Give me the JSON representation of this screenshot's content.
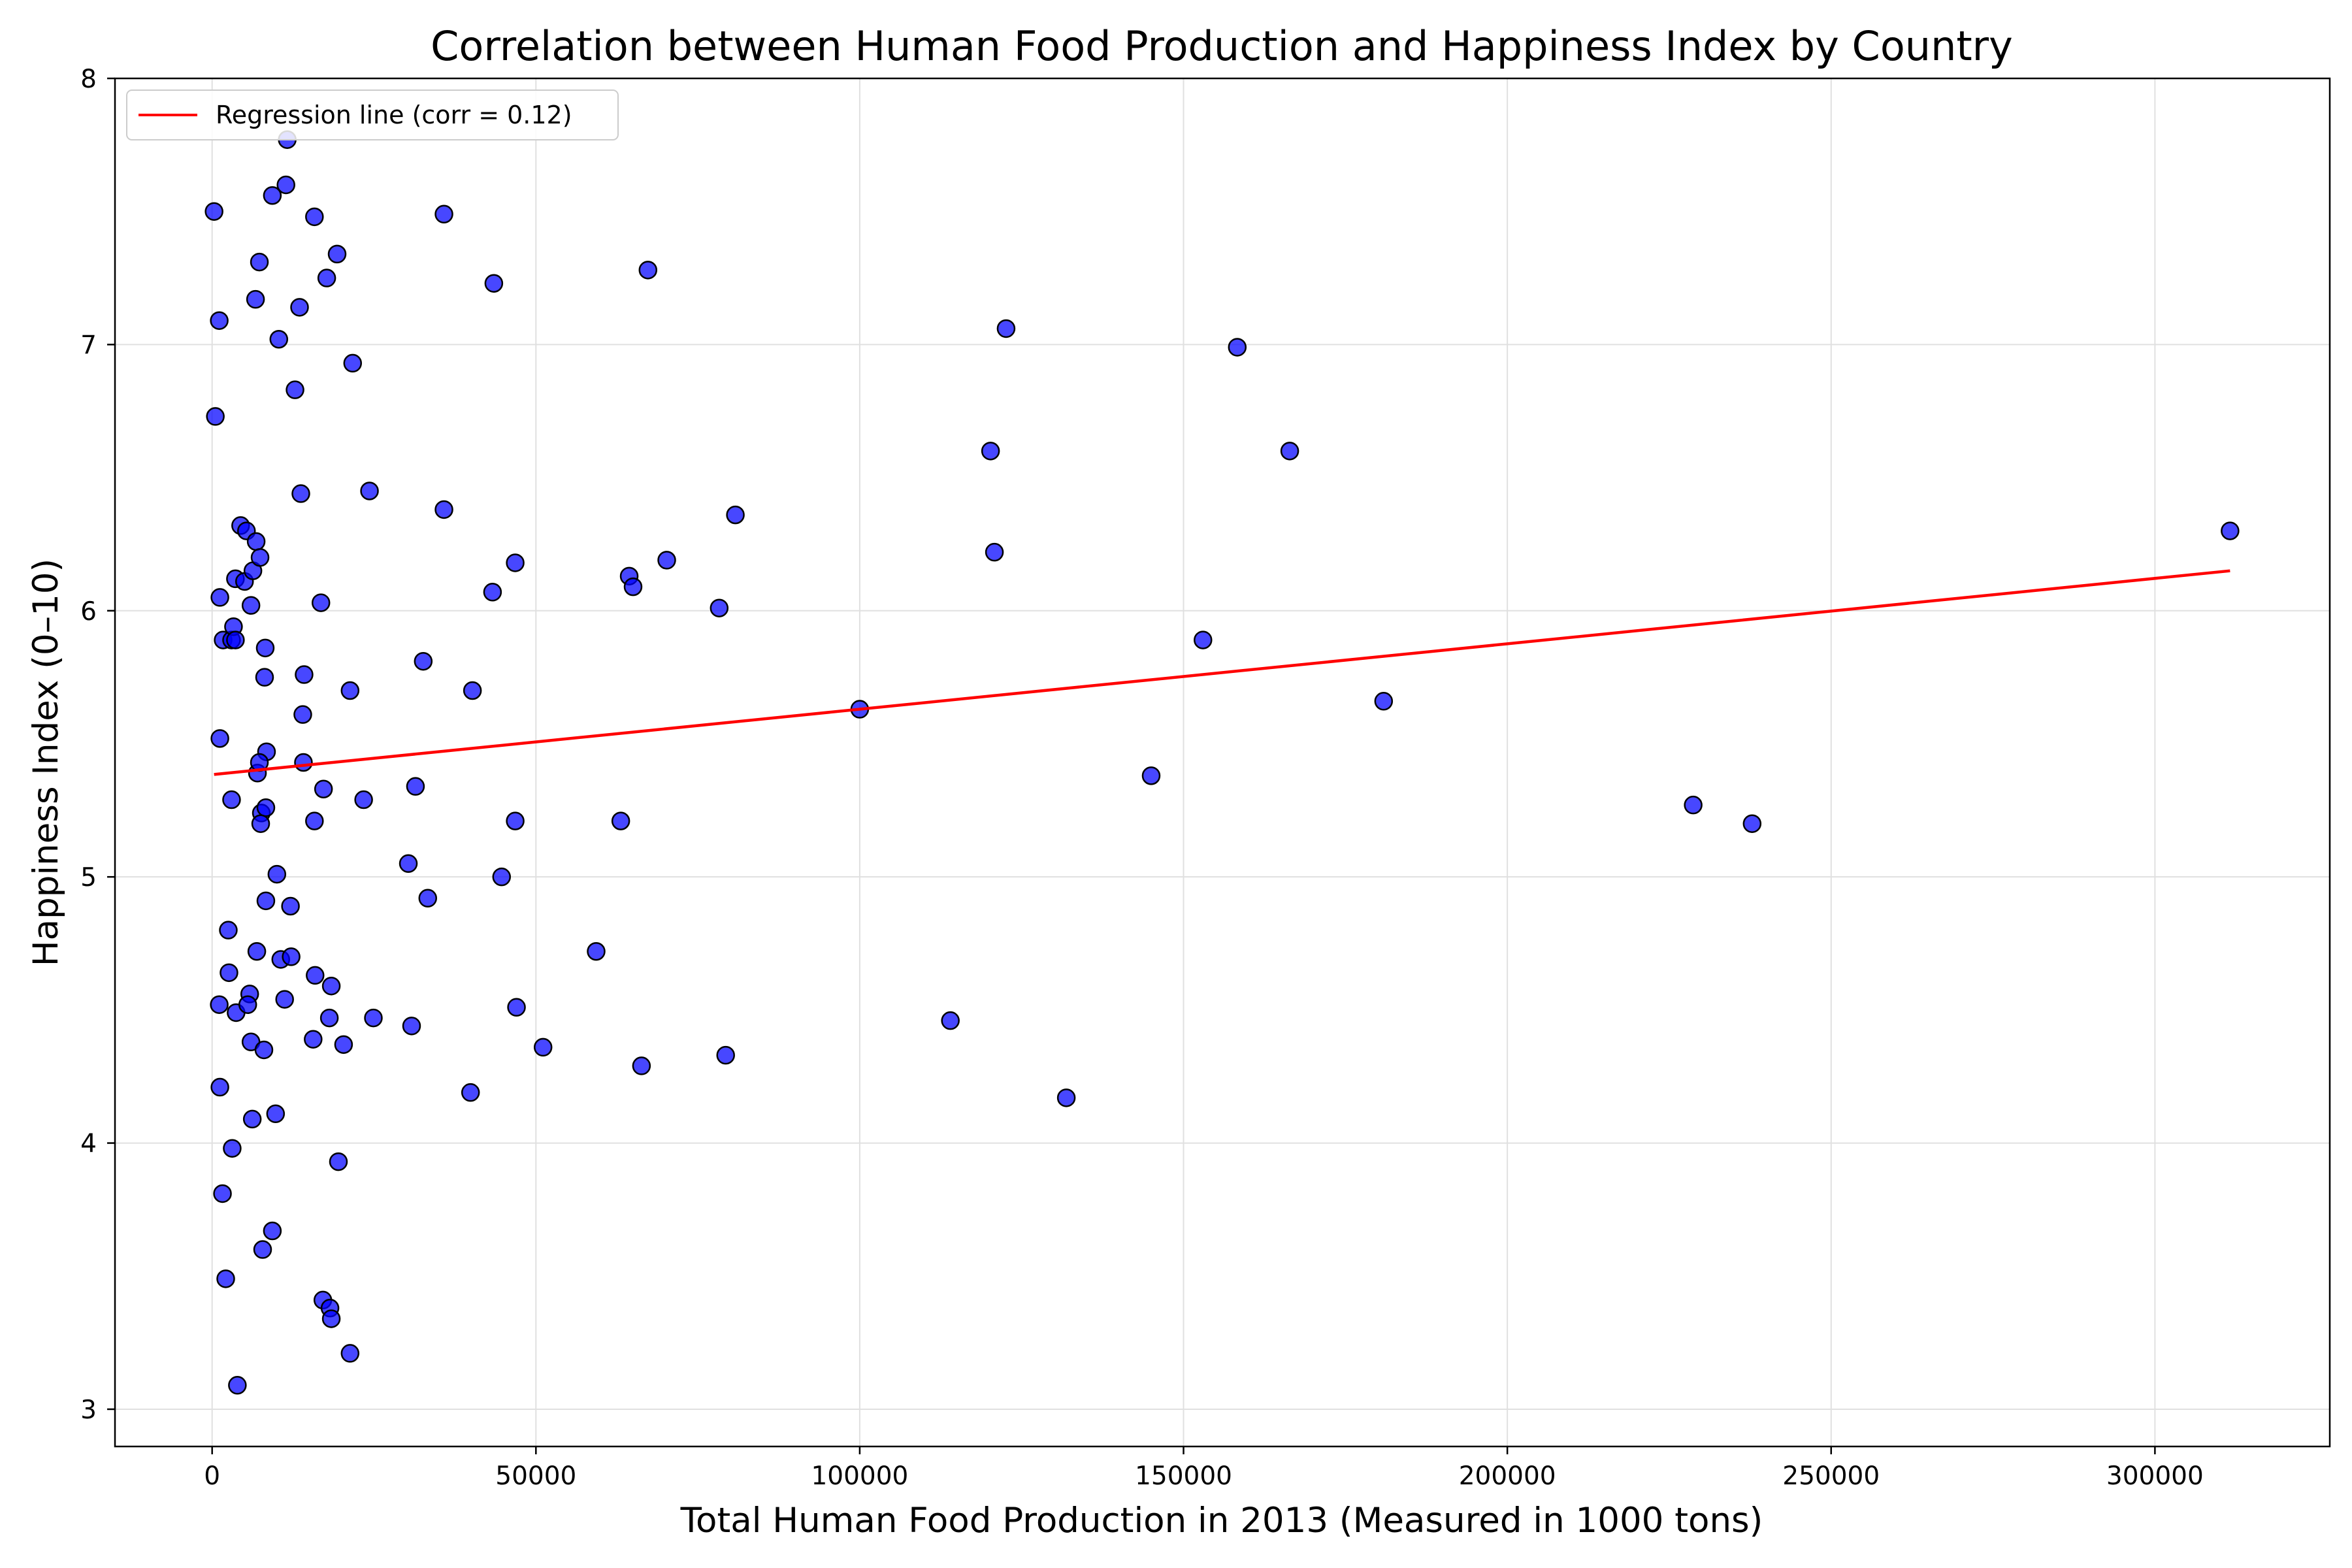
{
  "chart_data": {
    "type": "scatter",
    "title": "Correlation between Human Food Production and Happiness Index by Country",
    "xlabel": "Total Human Food Production in 2013 (Measured in 1000 tons)",
    "ylabel": "Happiness Index (0–10)",
    "xlim": [
      -15000,
      327000
    ],
    "ylim": [
      2.86,
      8.0
    ],
    "xticks": [
      0,
      50000,
      100000,
      150000,
      200000,
      250000,
      300000
    ],
    "xtick_labels": [
      "0",
      "50000",
      "100000",
      "150000",
      "200000",
      "250000",
      "300000"
    ],
    "yticks": [
      3,
      4,
      5,
      6,
      7,
      8
    ],
    "ytick_labels": [
      "3",
      "4",
      "5",
      "6",
      "7",
      "8"
    ],
    "grid": true,
    "legend_position": "top-left",
    "colors": {
      "point_fill": "#0000ff",
      "point_edge": "#000000",
      "regression_line": "#ff0000",
      "grid": "#e0e0e0"
    },
    "series": [
      {
        "kind": "scatter",
        "points": [
          [
            300,
            7.5
          ],
          [
            1100,
            7.09
          ],
          [
            500,
            6.73
          ],
          [
            1200,
            6.05
          ],
          [
            1700,
            5.89
          ],
          [
            3000,
            5.89
          ],
          [
            1200,
            5.52
          ],
          [
            3300,
            5.94
          ],
          [
            3600,
            6.12
          ],
          [
            3600,
            5.89
          ],
          [
            4400,
            6.32
          ],
          [
            5000,
            6.11
          ],
          [
            5300,
            6.3
          ],
          [
            6000,
            6.02
          ],
          [
            6300,
            6.15
          ],
          [
            6800,
            6.26
          ],
          [
            7400,
            6.2
          ],
          [
            8200,
            5.86
          ],
          [
            8100,
            5.75
          ],
          [
            8400,
            5.47
          ],
          [
            7000,
            5.39
          ],
          [
            7300,
            5.43
          ],
          [
            7600,
            5.24
          ],
          [
            8300,
            5.26
          ],
          [
            7500,
            5.2
          ],
          [
            3000,
            5.29
          ],
          [
            6700,
            7.17
          ],
          [
            7300,
            7.31
          ],
          [
            9300,
            7.56
          ],
          [
            11400,
            7.6
          ],
          [
            11600,
            7.77
          ],
          [
            10300,
            7.02
          ],
          [
            13500,
            7.14
          ],
          [
            15800,
            7.48
          ],
          [
            17700,
            7.25
          ],
          [
            19300,
            7.34
          ],
          [
            21700,
            6.93
          ],
          [
            12800,
            6.83
          ],
          [
            13700,
            6.44
          ],
          [
            24300,
            6.45
          ],
          [
            16800,
            6.03
          ],
          [
            14200,
            5.76
          ],
          [
            14000,
            5.61
          ],
          [
            14100,
            5.43
          ],
          [
            17200,
            5.33
          ],
          [
            15800,
            5.21
          ],
          [
            21300,
            5.7
          ],
          [
            23400,
            5.29
          ],
          [
            2500,
            4.8
          ],
          [
            2600,
            4.64
          ],
          [
            1100,
            4.52
          ],
          [
            3700,
            4.49
          ],
          [
            5800,
            4.56
          ],
          [
            5500,
            4.52
          ],
          [
            6900,
            4.72
          ],
          [
            6000,
            4.38
          ],
          [
            8000,
            4.35
          ],
          [
            8300,
            4.91
          ],
          [
            10000,
            5.01
          ],
          [
            12100,
            4.89
          ],
          [
            10600,
            4.69
          ],
          [
            12200,
            4.7
          ],
          [
            11200,
            4.54
          ],
          [
            15900,
            4.63
          ],
          [
            18400,
            4.59
          ],
          [
            18100,
            4.47
          ],
          [
            15600,
            4.39
          ],
          [
            20300,
            4.37
          ],
          [
            24900,
            4.47
          ],
          [
            1200,
            4.21
          ],
          [
            6200,
            4.09
          ],
          [
            9800,
            4.11
          ],
          [
            3100,
            3.98
          ],
          [
            1600,
            3.81
          ],
          [
            2100,
            3.49
          ],
          [
            9300,
            3.67
          ],
          [
            7800,
            3.6
          ],
          [
            19500,
            3.93
          ],
          [
            17100,
            3.41
          ],
          [
            18200,
            3.38
          ],
          [
            18400,
            3.34
          ],
          [
            21300,
            3.21
          ],
          [
            3900,
            3.09
          ],
          [
            35800,
            7.49
          ],
          [
            43500,
            7.23
          ],
          [
            67300,
            7.28
          ],
          [
            35800,
            6.38
          ],
          [
            46800,
            6.18
          ],
          [
            43300,
            6.07
          ],
          [
            32600,
            5.81
          ],
          [
            40200,
            5.7
          ],
          [
            31400,
            5.34
          ],
          [
            46800,
            5.21
          ],
          [
            30300,
            5.05
          ],
          [
            44700,
            5.0
          ],
          [
            33300,
            4.92
          ],
          [
            47000,
            4.51
          ],
          [
            30800,
            4.44
          ],
          [
            51100,
            4.36
          ],
          [
            39900,
            4.19
          ],
          [
            59300,
            4.72
          ],
          [
            63100,
            5.21
          ],
          [
            64400,
            6.13
          ],
          [
            65000,
            6.09
          ],
          [
            70200,
            6.19
          ],
          [
            78300,
            6.01
          ],
          [
            80800,
            6.36
          ],
          [
            66300,
            4.29
          ],
          [
            79300,
            4.33
          ],
          [
            100000,
            5.63
          ],
          [
            114000,
            4.46
          ],
          [
            120200,
            6.6
          ],
          [
            120800,
            6.22
          ],
          [
            122600,
            7.06
          ],
          [
            131900,
            4.17
          ],
          [
            145000,
            5.38
          ],
          [
            153000,
            5.89
          ],
          [
            158300,
            6.99
          ],
          [
            166400,
            6.6
          ],
          [
            180900,
            5.66
          ],
          [
            228700,
            5.27
          ],
          [
            237800,
            5.2
          ],
          [
            311600,
            6.3
          ]
        ]
      },
      {
        "kind": "line",
        "name": "Regression line (corr = 0.12)",
        "points": [
          [
            300,
            5.385
          ],
          [
            311600,
            6.15
          ]
        ]
      }
    ]
  }
}
